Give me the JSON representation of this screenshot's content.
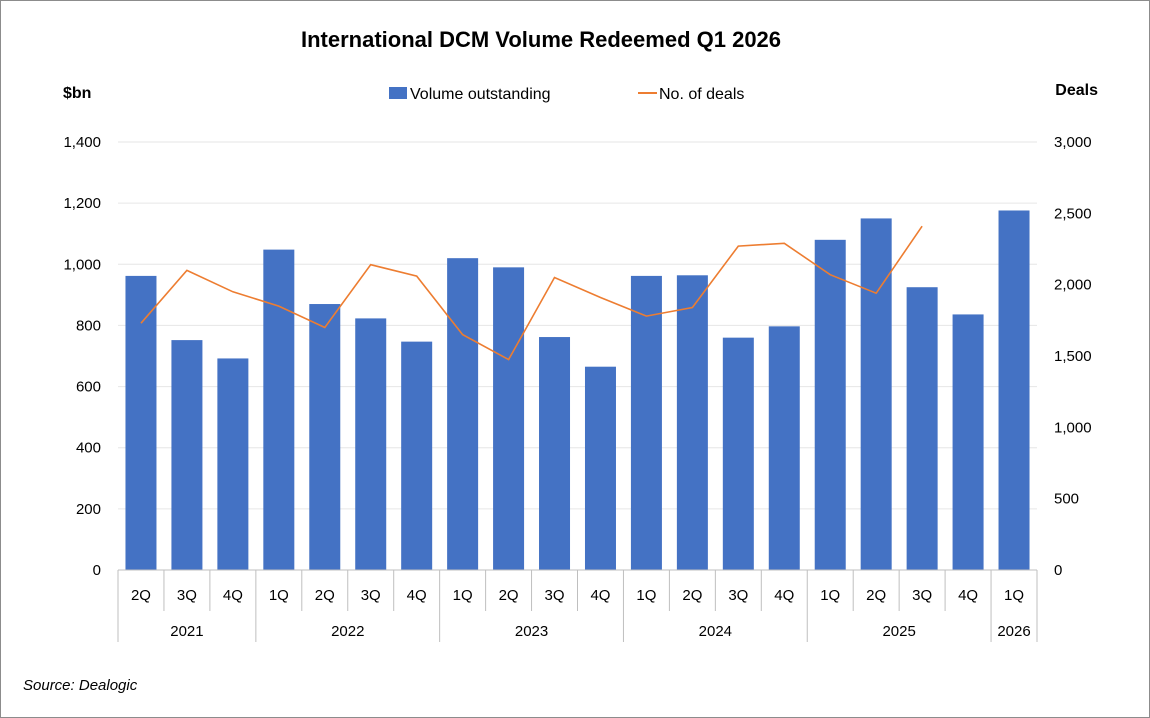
{
  "source_note": "Source: Dealogic",
  "colors": {
    "bar": "#4472C4",
    "line": "#ED7D31",
    "gridline": "#e6e6e6",
    "axis": "#bfbfbf"
  },
  "chart_data": {
    "type": "bar",
    "title": "International DCM Volume Redeemed Q1 2026",
    "ylabel": "$bn",
    "y2label": "Deals",
    "ylim": [
      0,
      1400
    ],
    "y2lim": [
      0,
      3000
    ],
    "yticks": [
      "0",
      "200",
      "400",
      "600",
      "800",
      "1,000",
      "1,200",
      "1,400"
    ],
    "y2ticks": [
      "0",
      "500",
      "1,000",
      "1,500",
      "2,000",
      "2,500",
      "3,000"
    ],
    "grid": true,
    "legend_position": "top-center",
    "categories": [
      "2Q",
      "3Q",
      "4Q",
      "1Q",
      "2Q",
      "3Q",
      "4Q",
      "1Q",
      "2Q",
      "3Q",
      "4Q",
      "1Q",
      "2Q",
      "3Q",
      "4Q",
      "1Q",
      "2Q",
      "3Q",
      "4Q",
      "1Q"
    ],
    "year_groups": [
      {
        "label": "2021",
        "count": 3
      },
      {
        "label": "2022",
        "count": 4
      },
      {
        "label": "2023",
        "count": 4
      },
      {
        "label": "2024",
        "count": 4
      },
      {
        "label": "2025",
        "count": 4
      },
      {
        "label": "2026",
        "count": 1
      }
    ],
    "series": [
      {
        "name": "Volume outstanding",
        "type": "bar",
        "axis": "left",
        "values": [
          962,
          752,
          692,
          1048,
          870,
          823,
          747,
          1020,
          990,
          762,
          665,
          962,
          964,
          760,
          797,
          1080,
          1150,
          925,
          836,
          1176
        ]
      },
      {
        "name": "No. of deals",
        "type": "line",
        "axis": "right",
        "values": [
          1730,
          2100,
          1950,
          1850,
          1700,
          2140,
          2060,
          1650,
          1475,
          2050,
          1910,
          1780,
          1840,
          2270,
          2290,
          2070,
          1940,
          2410,
          null,
          null
        ]
      }
    ]
  }
}
